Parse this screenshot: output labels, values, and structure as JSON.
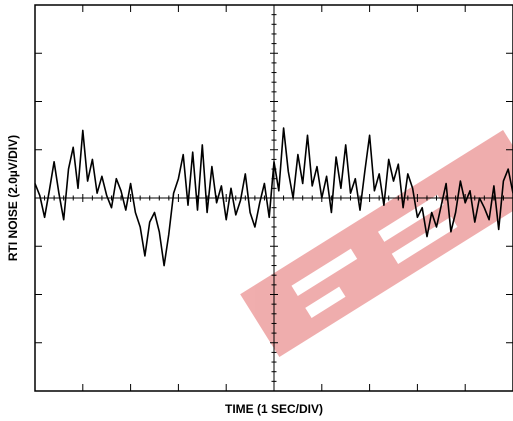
{
  "chart_data": {
    "type": "line",
    "title": "",
    "xlabel": "TIME (1 SEC/DIV)",
    "ylabel": "RTI NOISE (2.0µV/DIV)",
    "x_divisions": 10,
    "y_divisions": 8,
    "xlim": [
      -5,
      5
    ],
    "ylim": [
      -8,
      8
    ],
    "x_units": "s",
    "y_units": "µV",
    "grid": false,
    "center_crosshair": true,
    "watermark_color": "#e36b6b",
    "series": [
      {
        "color": "#000000",
        "x": [
          -5.0,
          -4.9,
          -4.8,
          -4.7,
          -4.6,
          -4.5,
          -4.4,
          -4.3,
          -4.2,
          -4.1,
          -4.0,
          -3.9,
          -3.8,
          -3.7,
          -3.6,
          -3.5,
          -3.4,
          -3.3,
          -3.2,
          -3.1,
          -3.0,
          -2.9,
          -2.8,
          -2.7,
          -2.6,
          -2.5,
          -2.4,
          -2.3,
          -2.2,
          -2.1,
          -2.0,
          -1.9,
          -1.8,
          -1.7,
          -1.6,
          -1.5,
          -1.4,
          -1.3,
          -1.2,
          -1.1,
          -1.0,
          -0.9,
          -0.8,
          -0.7,
          -0.6,
          -0.5,
          -0.4,
          -0.3,
          -0.2,
          -0.1,
          0.0,
          0.1,
          0.2,
          0.3,
          0.4,
          0.5,
          0.6,
          0.7,
          0.8,
          0.9,
          1.0,
          1.1,
          1.2,
          1.3,
          1.4,
          1.5,
          1.6,
          1.7,
          1.8,
          1.9,
          2.0,
          2.1,
          2.2,
          2.3,
          2.4,
          2.5,
          2.6,
          2.7,
          2.8,
          2.9,
          3.0,
          3.1,
          3.2,
          3.3,
          3.4,
          3.5,
          3.6,
          3.7,
          3.8,
          3.9,
          4.0,
          4.1,
          4.2,
          4.3,
          4.4,
          4.5,
          4.6,
          4.7,
          4.8,
          4.9,
          5.0
        ],
        "y": [
          0.6,
          0.1,
          -0.8,
          0.3,
          1.5,
          0.2,
          -0.9,
          1.2,
          2.1,
          0.4,
          2.8,
          0.7,
          1.6,
          0.2,
          0.9,
          0.1,
          -0.4,
          0.8,
          0.3,
          -0.5,
          0.6,
          -0.6,
          -1.2,
          -2.4,
          -1.0,
          -0.6,
          -1.4,
          -2.8,
          -1.5,
          0.2,
          0.8,
          1.8,
          -0.3,
          1.9,
          -0.5,
          2.2,
          -0.6,
          1.3,
          -0.2,
          0.5,
          -0.9,
          0.4,
          -0.7,
          -0.1,
          1.0,
          -0.6,
          -1.2,
          -0.2,
          0.6,
          -0.8,
          1.5,
          0.3,
          2.9,
          1.1,
          0.0,
          1.8,
          0.6,
          2.6,
          0.5,
          1.3,
          0.0,
          0.9,
          -0.6,
          1.7,
          0.4,
          2.2,
          0.2,
          0.8,
          -0.5,
          1.1,
          2.6,
          0.3,
          1.0,
          -0.3,
          1.6,
          0.7,
          1.4,
          -0.4,
          1.0,
          0.4,
          -0.8,
          -0.4,
          -1.6,
          -0.6,
          -1.2,
          -0.3,
          0.6,
          -1.4,
          -0.6,
          0.7,
          -0.2,
          0.3,
          -1.0,
          0.0,
          -0.4,
          -0.9,
          0.5,
          -1.3,
          0.7,
          1.2,
          0.2
        ]
      }
    ]
  }
}
